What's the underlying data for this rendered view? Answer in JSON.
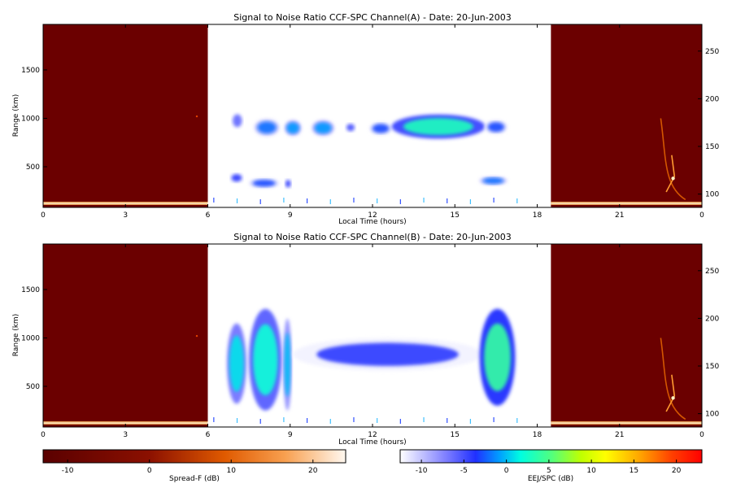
{
  "chart_data": [
    {
      "type": "heatmap",
      "title": "Signal to Noise Ratio CCF-SPC Channel(A) - Date: 20-Jun-2003",
      "xlabel": "Local Time (hours)",
      "ylabel": "Range (km)",
      "x_ticks": [
        "0",
        "3",
        "6",
        "9",
        "12",
        "15",
        "18",
        "21",
        "0"
      ],
      "y_ticks": [
        "500",
        "1000",
        "1500"
      ],
      "y_right_ticks": [
        "100",
        "150",
        "200",
        "250"
      ],
      "xlim": [
        0,
        24
      ],
      "ylim": [
        80,
        1970
      ],
      "y_right_lim": [
        86,
        278
      ],
      "night_blocks": [
        [
          0,
          6
        ],
        [
          18.5,
          24
        ]
      ],
      "echo_regions": [
        {
          "t": [
            6.85,
            7.3
          ],
          "r": [
            880,
            1070
          ],
          "snr": -6
        },
        {
          "t": [
            7.7,
            8.6
          ],
          "r": [
            820,
            990
          ],
          "snr": -2
        },
        {
          "t": [
            8.8,
            9.4
          ],
          "r": [
            820,
            980
          ],
          "snr": -1
        },
        {
          "t": [
            9.8,
            10.6
          ],
          "r": [
            820,
            980
          ],
          "snr": -1
        },
        {
          "t": [
            11.0,
            11.4
          ],
          "r": [
            850,
            960
          ],
          "snr": -5
        },
        {
          "t": [
            11.9,
            12.7
          ],
          "r": [
            830,
            960
          ],
          "snr": -3
        },
        {
          "t": [
            12.7,
            16.1
          ],
          "r": [
            790,
            1040
          ],
          "snr": 3
        },
        {
          "t": [
            16.1,
            16.9
          ],
          "r": [
            840,
            980
          ],
          "snr": -3
        },
        {
          "t": [
            6.8,
            7.3
          ],
          "r": [
            330,
            440
          ],
          "snr": -4
        },
        {
          "t": [
            7.5,
            8.6
          ],
          "r": [
            280,
            380
          ],
          "snr": -3
        },
        {
          "t": [
            8.8,
            9.05
          ],
          "r": [
            270,
            380
          ],
          "snr": -4
        },
        {
          "t": [
            15.9,
            16.9
          ],
          "r": [
            310,
            400
          ],
          "snr": -2
        }
      ]
    },
    {
      "type": "heatmap",
      "title": "Signal to Noise Ratio CCF-SPC Channel(B) - Date: 20-Jun-2003",
      "xlabel": "Local Time (hours)",
      "ylabel": "Range (km)",
      "x_ticks": [
        "0",
        "3",
        "6",
        "9",
        "12",
        "15",
        "18",
        "21",
        "0"
      ],
      "y_ticks": [
        "500",
        "1000",
        "1500"
      ],
      "y_right_ticks": [
        "100",
        "150",
        "200",
        "250"
      ],
      "xlim": [
        0,
        24
      ],
      "ylim": [
        80,
        1970
      ],
      "y_right_lim": [
        86,
        278
      ],
      "night_blocks": [
        [
          0,
          6
        ],
        [
          18.5,
          24
        ]
      ],
      "echo_regions": [
        {
          "t": [
            6.7,
            7.4
          ],
          "r": [
            320,
            1150
          ],
          "snr": 1
        },
        {
          "t": [
            7.5,
            8.7
          ],
          "r": [
            250,
            1300
          ],
          "snr": 2
        },
        {
          "t": [
            8.75,
            9.05
          ],
          "r": [
            250,
            1200
          ],
          "snr": 0
        },
        {
          "t": [
            9.1,
            16.0
          ],
          "r": [
            660,
            1000
          ],
          "snr": -4
        },
        {
          "t": [
            15.9,
            17.2
          ],
          "r": [
            300,
            1300
          ],
          "snr": 4
        }
      ]
    }
  ],
  "colorbars": [
    {
      "label": "Spread-F (dB)",
      "ticks": [
        "-10",
        "0",
        "10",
        "20"
      ],
      "range": [
        -13,
        24
      ],
      "colormap": "dark red to white"
    },
    {
      "label": "EEJ/SPC (dB)",
      "ticks": [
        "-10",
        "-5",
        "0",
        "5",
        "10",
        "15",
        "20"
      ],
      "range": [
        -12.5,
        23
      ],
      "colormap": "white-blue-cyan-yellow-red"
    }
  ],
  "colors": {
    "night_background": "#6b0000",
    "line_color": "#000000"
  }
}
